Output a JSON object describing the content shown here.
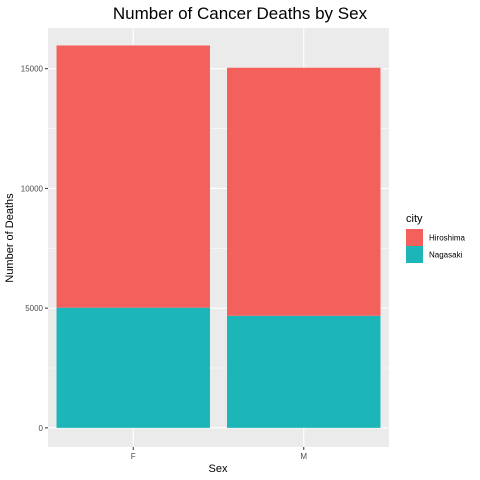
{
  "chart_data": {
    "type": "bar",
    "stacked": true,
    "title": "Number of Cancer Deaths by Sex",
    "xlabel": "Sex",
    "ylabel": "Number of Deaths",
    "categories": [
      "F",
      "M"
    ],
    "series": [
      {
        "name": "Nagasaki",
        "values": [
          5020,
          4680
        ],
        "color": "#1cb5b8"
      },
      {
        "name": "Hiroshima",
        "values": [
          10950,
          10360
        ],
        "color": "#f4605b"
      }
    ],
    "ylim": [
      -800,
      16700
    ],
    "yticks": [
      0,
      5000,
      10000,
      15000
    ],
    "ytick_labels": [
      "0",
      "5000",
      "10000",
      "15000"
    ],
    "grid": true,
    "panel_background": "#ebebeb",
    "grid_color": "#ffffff",
    "legend": {
      "title": "city",
      "position": "right",
      "items": [
        {
          "label": "Hiroshima",
          "color": "#f4605b"
        },
        {
          "label": "Nagasaki",
          "color": "#1cb5b8"
        }
      ]
    }
  }
}
